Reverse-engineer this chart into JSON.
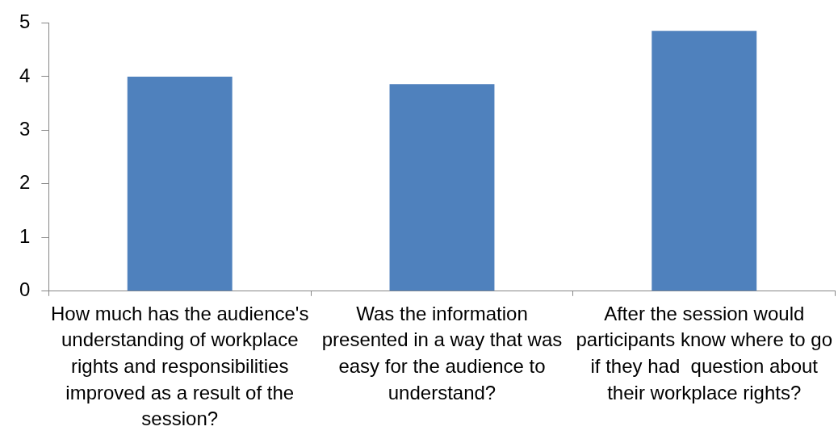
{
  "chart_data": {
    "type": "bar",
    "categories": [
      "How much has the audience's understanding of workplace rights and responsibilities improved as a result of the session?",
      "Was the information presented in a way that was easy for the audience to understand?",
      "After the session would participants know where to go if they had  question about their workplace rights?"
    ],
    "values": [
      4,
      3.86,
      4.85
    ],
    "color": "#4f81bd",
    "ylim": [
      0,
      5
    ],
    "yticks": [
      0,
      1,
      2,
      3,
      4,
      5
    ],
    "grid": false,
    "legend": false
  }
}
